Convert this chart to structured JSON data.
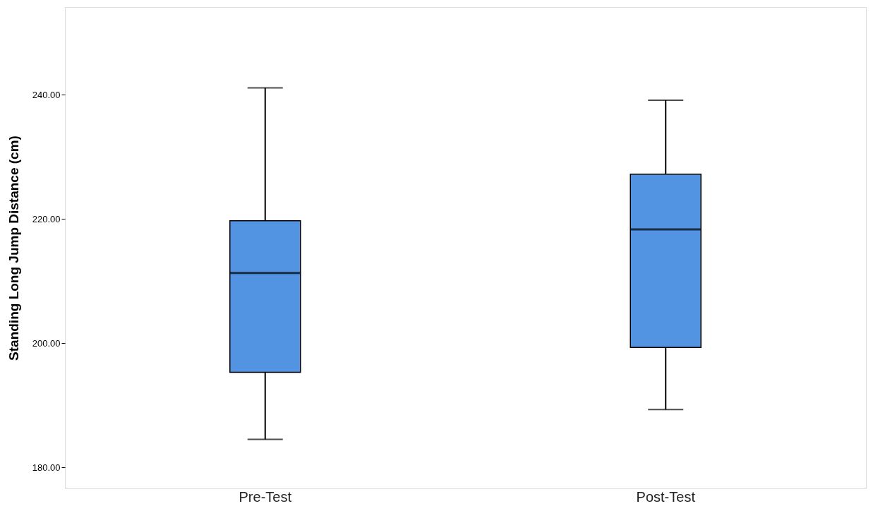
{
  "chart_data": {
    "type": "box",
    "ylabel": "Standing Long Jump Distance (cm)",
    "categories": [
      "Pre-Test",
      "Post-Test"
    ],
    "color": "#5294e2",
    "boxes": [
      {
        "low": 184.5,
        "q1": 195.3,
        "median": 211.3,
        "q3": 219.7,
        "high": 241.1
      },
      {
        "low": 189.3,
        "q1": 199.3,
        "median": 218.3,
        "q3": 227.2,
        "high": 239.1
      }
    ],
    "ylim": [
      176.6,
      254.1
    ],
    "yticks": [
      {
        "value": 180,
        "label": "180.00"
      },
      {
        "value": 200,
        "label": "200.00"
      },
      {
        "value": 220,
        "label": "220.00"
      },
      {
        "value": 240,
        "label": "240.00"
      }
    ],
    "grid": false
  }
}
